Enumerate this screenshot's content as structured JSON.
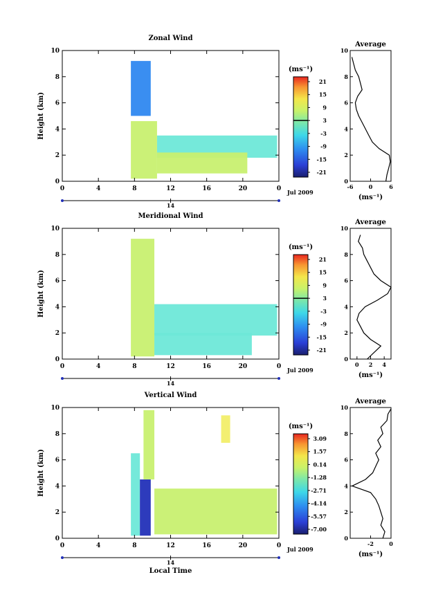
{
  "chart_data": [
    {
      "type": "heatmap",
      "title": "Zonal Wind",
      "ylabel": "Height (km)",
      "xlabel": "",
      "x_ticks": [
        "0",
        "4",
        "8",
        "12",
        "16",
        "20",
        "0"
      ],
      "y_ticks": [
        "0",
        "2",
        "4",
        "6",
        "8",
        "10"
      ],
      "xlim": [
        0,
        24
      ],
      "ylim": [
        0,
        10
      ],
      "date_label": "14",
      "date_suffix": "Jul 2009",
      "colorbar": {
        "unit": "(ms⁻¹)",
        "labels": [
          "21",
          "15",
          "9",
          "3",
          "-3",
          "-9",
          "-15",
          "-21"
        ],
        "zero_line_value": "3"
      },
      "data_regions": [
        {
          "x": [
            7.6,
            9.8
          ],
          "y": [
            5.0,
            9.2
          ],
          "level": "blue"
        },
        {
          "x": [
            7.6,
            10.5
          ],
          "y": [
            0.2,
            4.6
          ],
          "level": "yellow-green"
        },
        {
          "x": [
            10.5,
            23.8
          ],
          "y": [
            1.8,
            3.5
          ],
          "level": "cyan"
        },
        {
          "x": [
            10.5,
            20.5
          ],
          "y": [
            0.6,
            2.2
          ],
          "level": "yellow-green"
        }
      ],
      "average_profile": {
        "title": "Average",
        "xlabel": "(ms⁻¹)",
        "x_ticks": [
          "-6",
          "0",
          "6"
        ],
        "xlim": [
          -6,
          6
        ],
        "y_ticks": [
          "0",
          "2",
          "4",
          "6",
          "8",
          "10"
        ],
        "height": [
          0,
          0.5,
          1,
          1.5,
          2,
          2.5,
          3,
          3.5,
          4,
          4.5,
          5,
          5.5,
          6,
          6.5,
          7,
          7.5,
          8,
          8.5,
          9,
          9.5
        ],
        "values": [
          4.5,
          4.8,
          5.3,
          5.8,
          5.5,
          2.5,
          0.5,
          -0.5,
          -1.5,
          -2.5,
          -3.5,
          -4.2,
          -4.5,
          -3.8,
          -2.5,
          -3.0,
          -3.5,
          -4.5,
          -5.0,
          -5.5
        ]
      }
    },
    {
      "type": "heatmap",
      "title": "Meridional Wind",
      "ylabel": "Height (km)",
      "xlabel": "",
      "x_ticks": [
        "0",
        "4",
        "8",
        "12",
        "16",
        "20",
        "0"
      ],
      "y_ticks": [
        "0",
        "2",
        "4",
        "6",
        "8",
        "10"
      ],
      "xlim": [
        0,
        24
      ],
      "ylim": [
        0,
        10
      ],
      "date_label": "14",
      "date_suffix": "Jul 2009",
      "colorbar": {
        "unit": "(ms⁻¹)",
        "labels": [
          "21",
          "15",
          "9",
          "3",
          "-3",
          "-9",
          "-15",
          "-21"
        ],
        "zero_line_value": "3"
      },
      "data_regions": [
        {
          "x": [
            7.6,
            10.2
          ],
          "y": [
            0.2,
            9.2
          ],
          "level": "yellow-green"
        },
        {
          "x": [
            10.2,
            23.8
          ],
          "y": [
            1.8,
            4.2
          ],
          "level": "cyan"
        },
        {
          "x": [
            10.2,
            21.0
          ],
          "y": [
            0.3,
            2.0
          ],
          "level": "cyan"
        }
      ],
      "average_profile": {
        "title": "Average",
        "xlabel": "(ms⁻¹)",
        "x_ticks": [
          "0",
          "2",
          "4"
        ],
        "xlim": [
          -1,
          5
        ],
        "y_ticks": [
          "0",
          "2",
          "4",
          "6",
          "8",
          "10"
        ],
        "height": [
          0,
          0.5,
          1,
          1.5,
          2,
          2.5,
          3,
          3.5,
          4,
          4.5,
          5,
          5.5,
          6,
          6.5,
          7,
          7.5,
          8,
          8.5,
          9,
          9.5
        ],
        "values": [
          1.5,
          2.5,
          3.5,
          2.0,
          1.0,
          0.5,
          0.0,
          0.3,
          1.2,
          3.0,
          4.5,
          5.0,
          3.5,
          2.5,
          2.0,
          1.5,
          1.0,
          0.8,
          0.2,
          0.5
        ]
      }
    },
    {
      "type": "heatmap",
      "title": "Vertical Wind",
      "ylabel": "Height (km)",
      "xlabel": "Local Time",
      "x_ticks": [
        "0",
        "4",
        "8",
        "12",
        "16",
        "20",
        "0"
      ],
      "y_ticks": [
        "0",
        "2",
        "4",
        "6",
        "8",
        "10"
      ],
      "xlim": [
        0,
        24
      ],
      "ylim": [
        0,
        10
      ],
      "date_label": "14",
      "date_suffix": "Jul 2009",
      "colorbar": {
        "unit": "(ms⁻¹)",
        "labels": [
          "3.09",
          "1.57",
          "0.14",
          "-1.28",
          "-2.71",
          "-4.14",
          "-5.57",
          "-7.00"
        ]
      },
      "data_regions": [
        {
          "x": [
            7.6,
            8.6
          ],
          "y": [
            0.2,
            6.5
          ],
          "level": "cyan"
        },
        {
          "x": [
            8.6,
            9.8
          ],
          "y": [
            0.2,
            4.5
          ],
          "level": "dark-blue"
        },
        {
          "x": [
            9.0,
            10.2
          ],
          "y": [
            4.5,
            9.8
          ],
          "level": "yellow-green"
        },
        {
          "x": [
            10.2,
            23.8
          ],
          "y": [
            0.3,
            3.8
          ],
          "level": "yellow-green"
        },
        {
          "x": [
            17.6,
            18.6
          ],
          "y": [
            7.3,
            9.4
          ],
          "level": "yellow"
        }
      ],
      "average_profile": {
        "title": "Average",
        "xlabel": "(ms⁻¹)",
        "x_ticks": [
          "-2",
          "0"
        ],
        "xlim": [
          -4,
          0
        ],
        "y_ticks": [
          "0",
          "2",
          "4",
          "6",
          "8",
          "10"
        ],
        "height": [
          0,
          0.5,
          1,
          1.5,
          2,
          2.5,
          3,
          3.5,
          4,
          4.5,
          5,
          5.5,
          6,
          6.5,
          7,
          7.5,
          8,
          8.5,
          9,
          9.5,
          9.9
        ],
        "values": [
          -0.8,
          -0.6,
          -1.0,
          -0.8,
          -1.0,
          -1.2,
          -1.5,
          -2.0,
          -3.8,
          -2.5,
          -1.8,
          -1.5,
          -1.2,
          -1.5,
          -1.0,
          -1.3,
          -0.8,
          -1.0,
          -0.4,
          -0.3,
          0.0
        ]
      }
    }
  ]
}
